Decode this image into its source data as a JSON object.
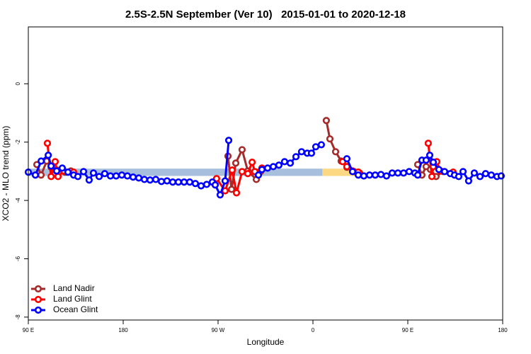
{
  "chart_data": {
    "type": "line",
    "title": "2.5S-2.5N September (Ver 10)   2015-01-01 to 2020-12-18",
    "xlabel": "Longitude",
    "ylabel": "XCO2 - MLO trend (ppm)",
    "xlim": [
      90,
      540
    ],
    "ylim": [
      -8.1,
      1.95
    ],
    "xticks": [
      {
        "value": 90,
        "label": "90 E"
      },
      180,
      {
        "value": 270,
        "label": "90 W"
      },
      {
        "value": 360,
        "label": "0"
      },
      {
        "value": 450,
        "label": "90 E"
      },
      {
        "value": 540,
        "label": "180"
      }
    ],
    "yticks": [
      0,
      -2,
      -4,
      -6,
      -8
    ],
    "legend": "bottomleft",
    "bands": [
      {
        "x": [
          90,
          369
        ],
        "y": [
          -3.16,
          -2.91
        ],
        "color": "#a7bedd"
      },
      {
        "x": [
          369,
          405
        ],
        "y": [
          -3.16,
          -2.91
        ],
        "color": "#fdd882"
      }
    ],
    "series": [
      {
        "name": "Land Nadir",
        "color": "#a52a2a",
        "x": [
          98.1,
          102.1,
          107.5,
          111.6,
          116.9,
          124.9,
          130.3,
          null,
          279.4,
          282.8,
          286.8,
          292.8,
          298.2,
          306.3,
          310.3,
          null,
          372.7,
          376.1,
          381.5,
          386.8,
          392.2,
          398.9,
          404.3,
          null,
          459.4,
          463.4,
          467.4,
          471.5,
          476.8,
          483.5
        ],
        "values": [
          -2.77,
          -3.13,
          -2.65,
          -2.86,
          -2.96,
          -3.03,
          -2.99,
          null,
          -2.48,
          -3.62,
          -2.72,
          -2.26,
          -2.99,
          -3.28,
          -3.01,
          null,
          -1.26,
          -1.89,
          -2.33,
          -2.65,
          -2.86,
          -3.01,
          -3.06,
          null,
          -2.77,
          -3.13,
          -2.84,
          -2.94,
          -3.18,
          -3.01
        ]
      },
      {
        "name": "Land Glint",
        "color": "#ff0000",
        "x": [
          108.1,
          111.6,
          115.5,
          118.2,
          123.6,
          133,
          null,
          268.6,
          276.7,
          283.4,
          287.5,
          292.8,
          298.2,
          302.3,
          304.9,
          311.6,
          null,
          388.2,
          392.2,
          397.6,
          403,
          null,
          469.4,
          472.8,
          474.2,
          477.5,
          480.9,
          493
        ],
        "values": [
          -2.04,
          -3.18,
          -2.67,
          -3.18,
          -2.99,
          -3.03,
          null,
          -3.25,
          -3.67,
          -2.96,
          -3.74,
          -3.01,
          -3.08,
          -2.69,
          -3.01,
          -2.89,
          null,
          -2.67,
          -2.84,
          -2.99,
          -3.03,
          null,
          -2.04,
          -3.18,
          -2.84,
          -2.67,
          -2.99,
          -3.03
        ]
      },
      {
        "name": "Ocean Glint",
        "color": "#0000ff",
        "x": [
          90,
          96.7,
          102.2,
          108.9,
          111.6,
          116.9,
          122.2,
          127.6,
          133,
          137,
          142.4,
          147.7,
          151.8,
          157.2,
          162.5,
          167.9,
          173.3,
          178.7,
          184,
          189.4,
          194.8,
          200.1,
          205.5,
          210.9,
          216.3,
          221.6,
          227,
          232.4,
          237.8,
          243.1,
          248.5,
          253.9,
          259.2,
          264.6,
          267.3,
          272,
          276.7,
          280.1,
          null,
          308.3,
          311.6,
          317,
          322.4,
          327.7,
          333.1,
          338.5,
          343.9,
          349.2,
          354.6,
          358.6,
          362.7,
          368,
          null,
          392.2,
          397.6,
          403,
          408.3,
          413.7,
          419.1,
          424.5,
          429.8,
          435.2,
          440.6,
          446,
          451.3,
          456.7,
          459.4,
          463.4,
          467.4,
          470.8,
          474.2,
          479.5,
          484.9,
          490.3,
          494.3,
          498.3,
          502.4,
          507.7,
          513.1,
          518.5,
          523.8,
          529.2,
          534.6,
          538.6
        ],
        "values": [
          -3.03,
          -3.13,
          -2.65,
          -2.45,
          -2.82,
          -2.99,
          -2.89,
          -3.03,
          -3.13,
          -3.18,
          -3.01,
          -3.3,
          -3.06,
          -3.18,
          -3.08,
          -3.16,
          -3.16,
          -3.13,
          -3.16,
          -3.2,
          -3.23,
          -3.28,
          -3.3,
          -3.28,
          -3.35,
          -3.33,
          -3.37,
          -3.37,
          -3.37,
          -3.37,
          -3.42,
          -3.5,
          -3.45,
          -3.37,
          -3.47,
          -3.81,
          -3.33,
          -1.94,
          null,
          -3.13,
          -2.94,
          -2.89,
          -2.84,
          -2.79,
          -2.67,
          -2.72,
          -2.5,
          -2.33,
          -2.38,
          -2.38,
          -2.16,
          -2.09,
          null,
          -2.57,
          -3.01,
          -3.13,
          -3.16,
          -3.13,
          -3.13,
          -3.11,
          -3.16,
          -3.06,
          -3.06,
          -3.06,
          -3.01,
          -3.06,
          -3.13,
          -2.62,
          -2.62,
          -2.45,
          -2.69,
          -2.94,
          -3.01,
          -3.08,
          -3.13,
          -3.18,
          -3.01,
          -3.33,
          -3.06,
          -3.18,
          -3.08,
          -3.13,
          -3.18,
          -3.16
        ]
      }
    ]
  }
}
